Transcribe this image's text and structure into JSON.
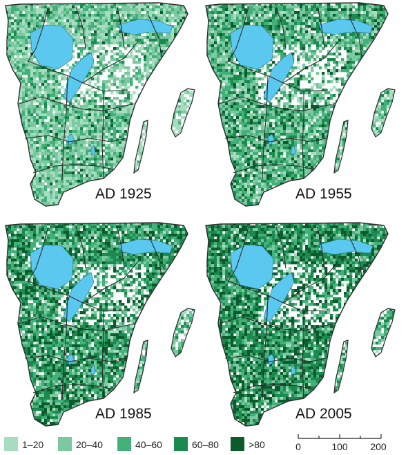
{
  "colors": {
    "water": "#5bc8ef",
    "border": "#2b2b2b",
    "classes": [
      "#a6dcc0",
      "#7cc8a0",
      "#43b07a",
      "#1c8a4e",
      "#0b5b2c"
    ]
  },
  "panels": [
    {
      "label": "AD 1925",
      "weights": [
        0.3,
        0.36,
        0.22,
        0.09,
        0.03
      ]
    },
    {
      "label": "AD 1955",
      "weights": [
        0.12,
        0.26,
        0.3,
        0.22,
        0.1
      ]
    },
    {
      "label": "AD 1985",
      "weights": [
        0.06,
        0.16,
        0.28,
        0.3,
        0.2
      ]
    },
    {
      "label": "AD 2005",
      "weights": [
        0.04,
        0.12,
        0.24,
        0.32,
        0.28
      ]
    }
  ],
  "legend": {
    "items": [
      {
        "label": "1–20",
        "icon": "swatch-square"
      },
      {
        "label": "20–40",
        "icon": "swatch-square"
      },
      {
        "label": "40–60",
        "icon": "swatch-square"
      },
      {
        "label": "60–80",
        "icon": "swatch-square"
      },
      {
        "label": ">80",
        "icon": "swatch-square"
      }
    ]
  },
  "scale_bar": {
    "ticks": [
      "0",
      "100",
      "200"
    ],
    "max_value": 200
  }
}
